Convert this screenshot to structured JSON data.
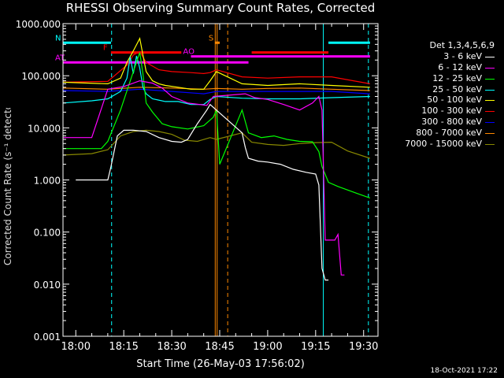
{
  "chart_data": {
    "type": "line",
    "title": "RHESSI Observing Summary Count Rates, Corrected",
    "xlabel": "Start Time (26-May-03 17:56:02)",
    "ylabel": "Corrected Count Rate (s⁻¹ detector⁻¹)",
    "footer": "18-Oct-2021 17:22",
    "log_scale_y": true,
    "ylim": [
      0.001,
      1000
    ],
    "xlim_minutes": [
      -4,
      34.5
    ],
    "x_ticks": [
      "18:00",
      "18:15",
      "18:30",
      "18:45",
      "19:00",
      "19:15",
      "19:30"
    ],
    "x_tick_minutes": [
      0,
      15,
      30,
      45,
      60,
      75,
      90
    ],
    "y_ticks": [
      "0.001",
      "0.010",
      "0.100",
      "1.000",
      "10.000",
      "100.000",
      "1000.000"
    ],
    "legend_header": "Det 1,3,4,5,6,9",
    "series": [
      {
        "name": "3 - 6 keV",
        "color": "#ffffff",
        "x": [
          0,
          10,
          11,
          13,
          15,
          18,
          22,
          26,
          30,
          33,
          35,
          38,
          41,
          42,
          52,
          53,
          54,
          57,
          60,
          64,
          68,
          72,
          75,
          76,
          77,
          78,
          79
        ],
        "y": [
          1,
          1,
          1.8,
          7,
          9,
          9,
          8.5,
          6.5,
          5.5,
          5.3,
          6,
          12,
          22,
          28,
          8,
          4.2,
          2.6,
          2.3,
          2.2,
          2.0,
          1.6,
          1.4,
          1.3,
          0.8,
          0.02,
          0.012,
          0.012
        ]
      },
      {
        "name": "6 - 12 keV",
        "color": "#ff00ff",
        "x": [
          -4,
          5,
          10,
          15,
          20,
          24,
          27,
          30,
          35,
          41,
          43,
          53,
          56,
          60,
          65,
          70,
          74,
          76,
          77,
          78,
          81,
          82,
          83,
          84
        ],
        "y": [
          6.5,
          6.5,
          55,
          62,
          80,
          72,
          58,
          40,
          30,
          27,
          40,
          45,
          38,
          35,
          28,
          22,
          30,
          40,
          22,
          0.07,
          0.07,
          0.09,
          0.015,
          0.015
        ]
      },
      {
        "name": "12 - 25 keV",
        "color": "#00ff00",
        "x": [
          -4,
          8,
          10,
          14,
          18,
          20,
          21,
          22,
          24,
          27,
          30,
          35,
          40,
          43,
          44,
          45,
          52,
          54,
          58,
          62,
          66,
          70,
          74,
          76,
          77,
          79,
          82,
          88,
          92
        ],
        "y": [
          4,
          4,
          5.5,
          22,
          120,
          280,
          110,
          30,
          20,
          12,
          10.5,
          9.5,
          11,
          16,
          22,
          2,
          22,
          8,
          6.5,
          7,
          6,
          5.5,
          5.4,
          3.5,
          1.8,
          0.9,
          0.75,
          0.55,
          0.45
        ]
      },
      {
        "name": "25 - 50 keV",
        "color": "#00ffff",
        "x": [
          -4,
          5,
          10,
          14,
          16,
          17,
          18,
          19,
          20,
          21,
          22,
          24,
          28,
          32,
          36,
          40,
          42,
          44,
          52,
          60,
          70,
          80,
          92
        ],
        "y": [
          30,
          33,
          36,
          50,
          90,
          230,
          110,
          240,
          140,
          60,
          45,
          36,
          32,
          32,
          28,
          28,
          35,
          40,
          37,
          36,
          36,
          38,
          40
        ]
      },
      {
        "name": "50 - 100 keV",
        "color": "#ffff00",
        "x": [
          -4,
          10,
          14,
          16,
          18,
          20,
          21,
          22,
          24,
          26,
          28,
          32,
          36,
          40,
          42,
          44,
          52,
          60,
          70,
          80,
          92
        ],
        "y": [
          75,
          70,
          90,
          180,
          300,
          520,
          250,
          120,
          80,
          70,
          65,
          60,
          55,
          55,
          80,
          120,
          70,
          65,
          70,
          65,
          60
        ]
      },
      {
        "name": "100 - 300 keV",
        "color": "#ff0000",
        "x": [
          -4,
          10,
          16,
          18,
          20,
          22,
          26,
          30,
          36,
          40,
          42,
          44,
          52,
          60,
          70,
          80,
          92
        ],
        "y": [
          75,
          78,
          160,
          250,
          290,
          180,
          130,
          120,
          115,
          110,
          115,
          130,
          95,
          90,
          95,
          95,
          70
        ]
      },
      {
        "name": "300 - 800 keV",
        "color": "#0000ff",
        "x": [
          -4,
          10,
          20,
          30,
          40,
          44,
          52,
          60,
          70,
          80,
          92
        ],
        "y": [
          52,
          50,
          55,
          50,
          45,
          50,
          50,
          50,
          50,
          50,
          45
        ]
      },
      {
        "name": "800 - 7000 keV",
        "color": "#ff8800",
        "x": [
          -4,
          10,
          20,
          30,
          40,
          44,
          52,
          60,
          70,
          80,
          92
        ],
        "y": [
          58,
          55,
          60,
          58,
          55,
          57,
          55,
          57,
          58,
          55,
          52
        ]
      },
      {
        "name": "7000 - 15000 keV",
        "color": "#888800",
        "x": [
          -4,
          5,
          10,
          14,
          18,
          22,
          26,
          30,
          34,
          38,
          42,
          44,
          52,
          55,
          60,
          65,
          70,
          75,
          80,
          85,
          92
        ],
        "y": [
          3,
          3.2,
          3.8,
          7,
          8.5,
          9,
          8.5,
          7.5,
          5.8,
          5.5,
          6.5,
          6,
          8,
          5.3,
          4.8,
          4.6,
          5,
          5.2,
          5.3,
          3.6,
          2.6
        ]
      }
    ],
    "flag_bars": [
      {
        "label": "F",
        "color": "#ff0000",
        "level": 280,
        "segments": [
          [
            11,
            33
          ],
          [
            55,
            79
          ]
        ]
      },
      {
        "label": "N",
        "color": "#00ffff",
        "level": 430,
        "segments": [
          [
            -4,
            11
          ],
          [
            79,
            92
          ]
        ]
      },
      {
        "label": "AO",
        "color": "#ff00ff",
        "level": 235,
        "segments": [
          [
            36,
            92
          ]
        ]
      },
      {
        "label": "AT",
        "color": "#ff00ff",
        "level": 180,
        "segments": [
          [
            -4,
            54
          ]
        ]
      },
      {
        "label": "S",
        "color": "#ff8800",
        "level": 430,
        "segments": [
          [
            43.5,
            45
          ]
        ]
      }
    ],
    "vlines": [
      {
        "color": "#00ffff",
        "style": "dash",
        "x": 11.2
      },
      {
        "color": "#00ffff",
        "style": "solid",
        "x": 77.4
      },
      {
        "color": "#00ffff",
        "style": "dash",
        "x": 91.5
      },
      {
        "color": "#ff8800",
        "style": "solid",
        "x": 43.6
      },
      {
        "color": "#ff8800",
        "style": "solid",
        "x": 44.2
      },
      {
        "color": "#ff8800",
        "style": "dash",
        "x": 47.5
      }
    ]
  }
}
